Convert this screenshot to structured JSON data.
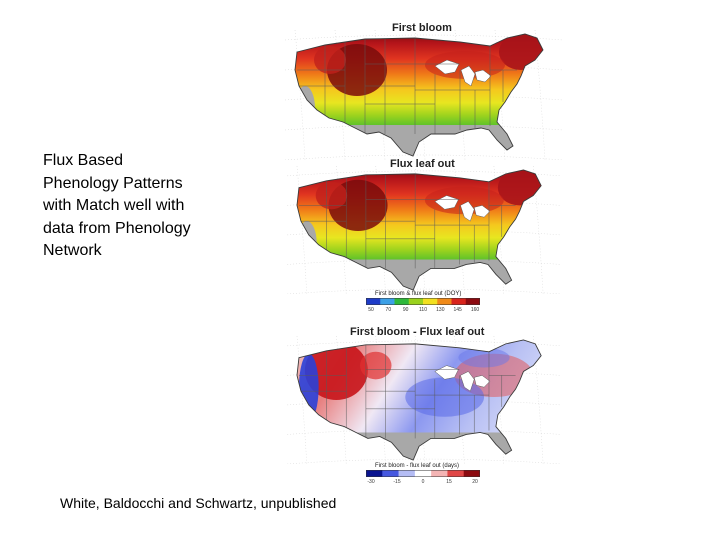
{
  "caption": {
    "lines": [
      "Flux Based",
      "Phenology Patterns",
      "with Match well with",
      "data from Phenology",
      "Network"
    ]
  },
  "credit": "White, Baldocchi and Schwartz, unpublished",
  "maps": [
    {
      "title": "First bloom",
      "scheme": "phenology"
    },
    {
      "title": "Flux leaf out",
      "scheme": "phenology"
    },
    {
      "title": "First bloom - Flux leaf out",
      "scheme": "difference"
    }
  ],
  "legends": [
    {
      "title": "First bloom & flux leaf out (DOY)",
      "ticks": [
        "50",
        "70",
        "90",
        "110",
        "130",
        "145",
        "160"
      ],
      "colors": [
        "#1e3cc8",
        "#3ca0e6",
        "#2eb83a",
        "#9ad21e",
        "#f2e020",
        "#f08a18",
        "#d8241c",
        "#8c0a10"
      ]
    },
    {
      "title": "First bloom - flux leaf out (days)",
      "ticks": [
        "-30",
        "-15",
        "0",
        "15",
        "20"
      ],
      "colors": [
        "#0a1490",
        "#4658e0",
        "#b4bcf4",
        "#ffffff",
        "#f4b4b4",
        "#e04646",
        "#8c0a10"
      ]
    }
  ],
  "colors": {
    "ocean_mask": "#a8a8a8",
    "state_lines": "#5a5a5a",
    "graticule": "#c8c8c8"
  }
}
